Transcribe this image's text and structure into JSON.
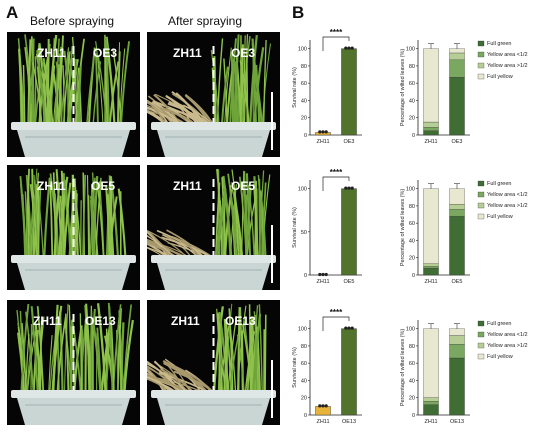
{
  "panel_a": {
    "letter": "A",
    "col_before": "Before spraying",
    "col_after": "After spraying",
    "rows": [
      {
        "control": "ZH11",
        "line": "OE3"
      },
      {
        "control": "ZH11",
        "line": "OE5"
      },
      {
        "control": "ZH11",
        "line": "OE13"
      }
    ]
  },
  "panel_b": {
    "letter": "B"
  },
  "colors": {
    "full_green": "#3f6d34",
    "yellow_lt_half": "#7aa860",
    "yellow_gt_half": "#b7cd96",
    "full_yellow": "#e8e7cf",
    "zh11_bar": "#e8b33a",
    "oe_bar": "#52732c"
  },
  "chart_data": [
    {
      "type": "bar",
      "categories": [
        "ZH11",
        "OE3"
      ],
      "values": [
        3,
        100
      ],
      "ylabel": "Survival rate (%)",
      "yticks": [
        0,
        20,
        40,
        60,
        80,
        100
      ],
      "ylim": [
        0,
        110
      ],
      "significance": "****"
    },
    {
      "type": "bar",
      "stacked": true,
      "categories": [
        "ZH11",
        "OE3"
      ],
      "ylabel": "Percentage of wilted leaves (%)",
      "yticks": [
        0,
        20,
        40,
        60,
        80,
        100
      ],
      "ylim": [
        0,
        110
      ],
      "series": [
        {
          "name": "Full green",
          "values": [
            5,
            67
          ]
        },
        {
          "name": "Yellow area <1/2",
          "values": [
            4,
            20
          ]
        },
        {
          "name": "Yellow area >1/2",
          "values": [
            6,
            8
          ]
        },
        {
          "name": "Full yellow",
          "values": [
            85,
            5
          ]
        }
      ]
    },
    {
      "type": "bar",
      "categories": [
        "ZH11",
        "OE5"
      ],
      "values": [
        0,
        100
      ],
      "ylabel": "Survival rate (%)",
      "yticks": [
        0,
        50,
        100
      ],
      "ylim": [
        0,
        110
      ],
      "significance": "****"
    },
    {
      "type": "bar",
      "stacked": true,
      "categories": [
        "ZH11",
        "OE5"
      ],
      "ylabel": "Percentage of wilted leaves (%)",
      "yticks": [
        0,
        20,
        40,
        60,
        80,
        100
      ],
      "ylim": [
        0,
        110
      ],
      "series": [
        {
          "name": "Full green",
          "values": [
            8,
            68
          ]
        },
        {
          "name": "Yellow area <1/2",
          "values": [
            2,
            8
          ]
        },
        {
          "name": "Yellow area >1/2",
          "values": [
            3,
            6
          ]
        },
        {
          "name": "Full yellow",
          "values": [
            87,
            18
          ]
        }
      ]
    },
    {
      "type": "bar",
      "categories": [
        "ZH11",
        "OE13"
      ],
      "values": [
        10,
        100
      ],
      "ylabel": "Survival rate (%)",
      "yticks": [
        0,
        20,
        40,
        60,
        80,
        100
      ],
      "ylim": [
        0,
        110
      ],
      "significance": "****"
    },
    {
      "type": "bar",
      "stacked": true,
      "categories": [
        "ZH11",
        "OE13"
      ],
      "ylabel": "Percentage of wilted leaves (%)",
      "yticks": [
        0,
        20,
        40,
        60,
        80,
        100
      ],
      "ylim": [
        0,
        110
      ],
      "series": [
        {
          "name": "Full green",
          "values": [
            12,
            66
          ]
        },
        {
          "name": "Yellow area <1/2",
          "values": [
            4,
            16
          ]
        },
        {
          "name": "Yellow area >1/2",
          "values": [
            4,
            10
          ]
        },
        {
          "name": "Full yellow",
          "values": [
            80,
            8
          ]
        }
      ]
    }
  ]
}
